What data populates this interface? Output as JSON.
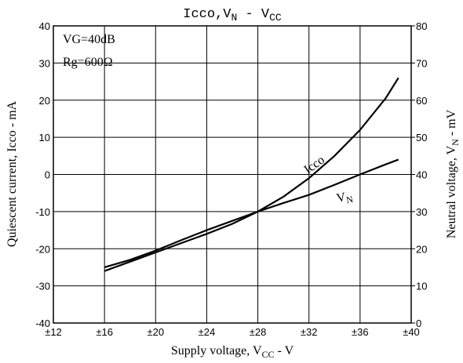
{
  "chart_data": {
    "type": "line",
    "title_parts": [
      "Icco,V",
      "N",
      " - V",
      "CC"
    ],
    "xlabel_parts": [
      "Supply voltage, V",
      "CC",
      " - V"
    ],
    "ylabel": "Quiescent current, Icco - mA",
    "y2label_parts": [
      "Neutral voltage, V",
      "N",
      " - mV"
    ],
    "annotations": [
      "VG=40dB",
      "Rg=600Ω"
    ],
    "x": [
      16,
      18,
      20,
      22,
      24,
      26,
      28,
      30,
      32,
      34,
      36,
      38,
      39
    ],
    "series": [
      {
        "name": "Icco",
        "color": "#000000",
        "values": [
          -26,
          -23.5,
          -21,
          -18.5,
          -16,
          -13.3,
          -10,
          -6,
          -1,
          5,
          12,
          20.5,
          26
        ]
      },
      {
        "name_parts": [
          "V",
          "N"
        ],
        "color": "#000000",
        "axis": "y2",
        "values": [
          15,
          17,
          19.5,
          22.3,
          25,
          27.5,
          30,
          32.3,
          34.5,
          37.2,
          40,
          42.7,
          44
        ]
      }
    ],
    "xlim": [
      12,
      40
    ],
    "xticks": [
      {
        "value": 12,
        "label": "±12"
      },
      {
        "value": 16,
        "label": "±16"
      },
      {
        "value": 20,
        "label": "±20"
      },
      {
        "value": 24,
        "label": "±24"
      },
      {
        "value": 28,
        "label": "±28"
      },
      {
        "value": 32,
        "label": "±32"
      },
      {
        "value": 36,
        "label": "±36"
      },
      {
        "value": 40,
        "label": "±40"
      }
    ],
    "ylim": [
      -40,
      40
    ],
    "yticks": [
      -40,
      -30,
      -20,
      -10,
      0,
      10,
      20,
      30,
      40
    ],
    "y2lim": [
      0,
      80
    ],
    "y2ticks": [
      0,
      10,
      20,
      30,
      40,
      50,
      60,
      70,
      80
    ],
    "grid": true
  }
}
